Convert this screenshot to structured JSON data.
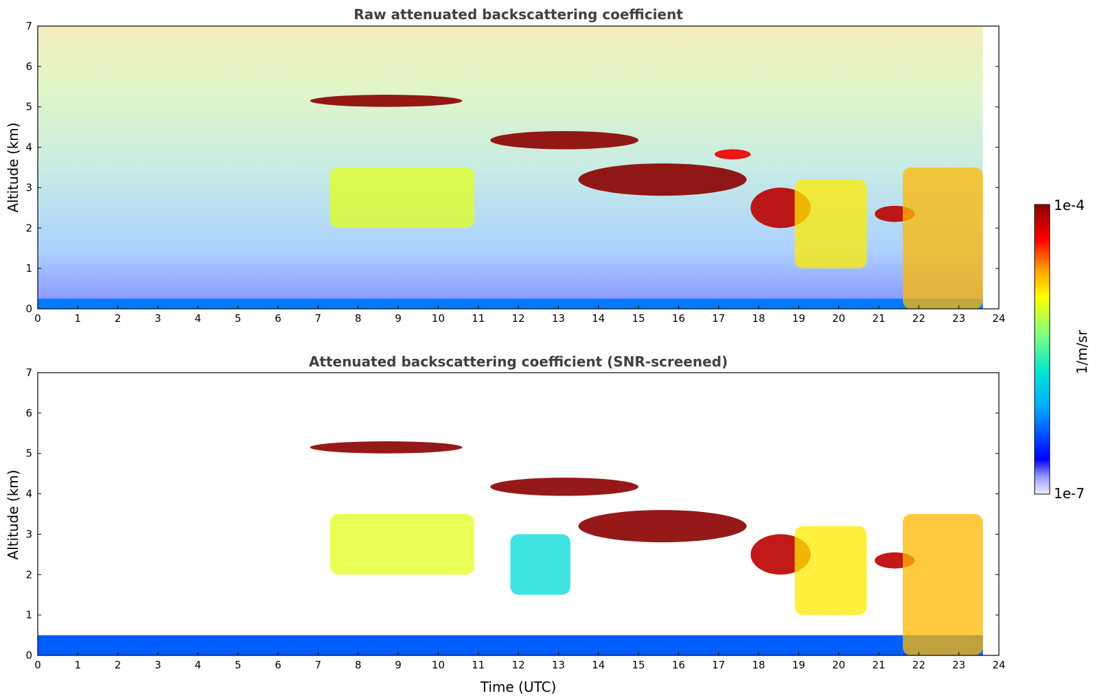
{
  "chart_data": [
    {
      "type": "heatmap",
      "title": "Raw attenuated backscattering coefficient",
      "xlabel": "",
      "ylabel": "Altitude (km)",
      "xlim": [
        0,
        24
      ],
      "ylim": [
        0,
        7
      ],
      "x_ticks": [
        "0",
        "1",
        "2",
        "3",
        "4",
        "5",
        "6",
        "7",
        "8",
        "9",
        "10",
        "11",
        "12",
        "13",
        "14",
        "15",
        "16",
        "17",
        "18",
        "19",
        "20",
        "21",
        "22",
        "23",
        "24"
      ],
      "y_ticks": [
        "0",
        "1",
        "2",
        "3",
        "4",
        "5",
        "6",
        "7"
      ],
      "data_end_time": 23.6,
      "features": [
        {
          "kind": "surface_layer",
          "t_start": 0,
          "t_end": 23.6,
          "alt_top": 0.25,
          "level": 0.25
        },
        {
          "kind": "cloud",
          "t_start": 6.8,
          "t_end": 10.6,
          "alt_base": 5.0,
          "alt_top": 5.3,
          "level": 1.0
        },
        {
          "kind": "cloud",
          "t_start": 11.3,
          "t_end": 15.0,
          "alt_base": 3.95,
          "alt_top": 4.4,
          "level": 1.0
        },
        {
          "kind": "cloud",
          "t_start": 13.5,
          "t_end": 17.7,
          "alt_base": 2.8,
          "alt_top": 3.6,
          "level": 1.0
        },
        {
          "kind": "cloud",
          "t_start": 16.9,
          "t_end": 17.8,
          "alt_base": 3.7,
          "alt_top": 3.95,
          "level": 0.9
        },
        {
          "kind": "cloud",
          "t_start": 17.8,
          "t_end": 19.3,
          "alt_base": 2.0,
          "alt_top": 3.0,
          "level": 0.95
        },
        {
          "kind": "cloud",
          "t_start": 20.9,
          "t_end": 21.9,
          "alt_base": 2.15,
          "alt_top": 2.55,
          "level": 0.95
        },
        {
          "kind": "precipitation",
          "t_start": 7.3,
          "t_end": 10.9,
          "alt_base": 2.0,
          "alt_top": 3.5,
          "level": 0.65
        },
        {
          "kind": "precipitation",
          "t_start": 18.9,
          "t_end": 20.7,
          "alt_base": 1.0,
          "alt_top": 3.2,
          "level": 0.7
        },
        {
          "kind": "precipitation",
          "t_start": 21.6,
          "t_end": 23.6,
          "alt_base": 0.0,
          "alt_top": 3.5,
          "level": 0.75
        }
      ]
    },
    {
      "type": "heatmap",
      "title": "Attenuated backscattering coefficient (SNR-screened)",
      "xlabel": "Time (UTC)",
      "ylabel": "Altitude (km)",
      "xlim": [
        0,
        24
      ],
      "ylim": [
        0,
        7
      ],
      "x_ticks": [
        "0",
        "1",
        "2",
        "3",
        "4",
        "5",
        "6",
        "7",
        "8",
        "9",
        "10",
        "11",
        "12",
        "13",
        "14",
        "15",
        "16",
        "17",
        "18",
        "19",
        "20",
        "21",
        "22",
        "23",
        "24"
      ],
      "y_ticks": [
        "0",
        "1",
        "2",
        "3",
        "4",
        "5",
        "6",
        "7"
      ],
      "data_end_time": 23.6,
      "features": [
        {
          "kind": "boundary_layer",
          "t_start": 0,
          "t_end": 23.6,
          "alt_top": 0.5,
          "level": 0.22
        },
        {
          "kind": "cloud",
          "t_start": 6.8,
          "t_end": 10.6,
          "alt_base": 5.0,
          "alt_top": 5.3,
          "level": 1.0
        },
        {
          "kind": "cloud",
          "t_start": 11.3,
          "t_end": 15.0,
          "alt_base": 3.95,
          "alt_top": 4.4,
          "level": 1.0
        },
        {
          "kind": "cloud",
          "t_start": 13.5,
          "t_end": 17.7,
          "alt_base": 2.8,
          "alt_top": 3.6,
          "level": 1.0
        },
        {
          "kind": "cloud",
          "t_start": 17.8,
          "t_end": 19.3,
          "alt_base": 2.0,
          "alt_top": 3.0,
          "level": 0.95
        },
        {
          "kind": "cloud",
          "t_start": 20.9,
          "t_end": 21.9,
          "alt_base": 2.15,
          "alt_top": 2.55,
          "level": 0.95
        },
        {
          "kind": "precipitation",
          "t_start": 7.3,
          "t_end": 10.9,
          "alt_base": 2.0,
          "alt_top": 3.5,
          "level": 0.65
        },
        {
          "kind": "precipitation",
          "t_start": 11.8,
          "t_end": 13.3,
          "alt_base": 1.5,
          "alt_top": 3.0,
          "level": 0.4
        },
        {
          "kind": "precipitation",
          "t_start": 18.9,
          "t_end": 20.7,
          "alt_base": 1.0,
          "alt_top": 3.2,
          "level": 0.7
        },
        {
          "kind": "precipitation",
          "t_start": 21.6,
          "t_end": 23.6,
          "alt_base": 0.0,
          "alt_top": 3.5,
          "level": 0.75
        }
      ]
    }
  ],
  "colorbar": {
    "label": "1/m/sr",
    "max_label": "1e-4",
    "min_label": "1e-7",
    "colors": [
      "#eeeeff",
      "#9999ff",
      "#0000ff",
      "#00aaff",
      "#00e5d0",
      "#7fff7f",
      "#ffff00",
      "#ff9900",
      "#ff0000",
      "#8b0000"
    ]
  }
}
